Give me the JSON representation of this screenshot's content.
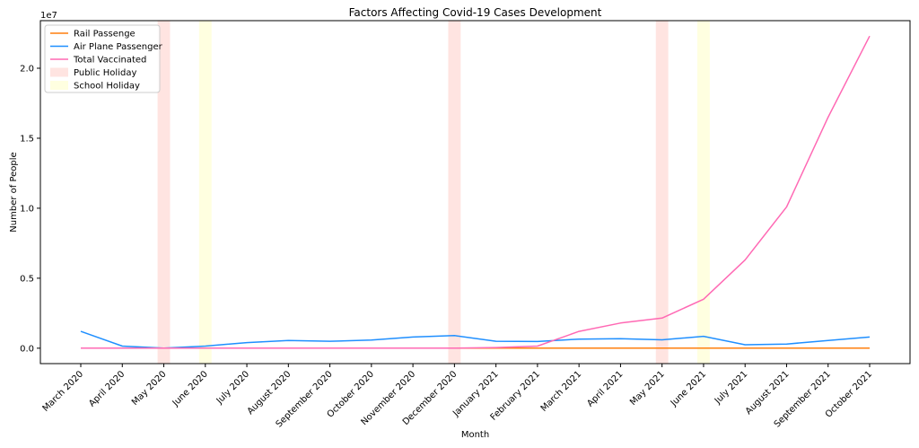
{
  "chart_data": {
    "type": "line",
    "title": "Factors Affecting Covid-19 Cases Development",
    "xlabel": "Month",
    "ylabel": "Number of People",
    "y_scale_label": "1e7",
    "ylim": [
      -1100000,
      23400000
    ],
    "yticks": [
      0,
      5000000,
      10000000,
      15000000,
      20000000
    ],
    "ytick_labels": [
      "0.0",
      "0.5",
      "1.0",
      "1.5",
      "2.0"
    ],
    "categories": [
      "March 2020",
      "April 2020",
      "May 2020",
      "June 2020",
      "July 2020",
      "August 2020",
      "September 2020",
      "October 2020",
      "November 2020",
      "December 2020",
      "January 2021",
      "February 2021",
      "March 2021",
      "April 2021",
      "May 2021",
      "June 2021",
      "July 2021",
      "August 2021",
      "September 2021",
      "October 2021"
    ],
    "series": [
      {
        "name": "Rail Passenge",
        "color": "#ff7f0e",
        "values": [
          0,
          0,
          0,
          0,
          0,
          0,
          0,
          0,
          0,
          0,
          0,
          0,
          0,
          0,
          0,
          0,
          0,
          0,
          0,
          0
        ]
      },
      {
        "name": "Air Plane Passenger",
        "color": "#1f8fff",
        "values": [
          1200000,
          150000,
          0,
          150000,
          400000,
          550000,
          500000,
          580000,
          800000,
          900000,
          500000,
          480000,
          650000,
          680000,
          600000,
          850000,
          250000,
          300000,
          550000,
          800000
        ]
      },
      {
        "name": "Total Vaccinated",
        "color": "#ff69b4",
        "values": [
          0,
          0,
          0,
          0,
          0,
          0,
          0,
          0,
          0,
          0,
          50000,
          150000,
          1200000,
          1800000,
          2150000,
          3500000,
          6300000,
          10100000,
          16500000,
          22300000
        ]
      }
    ],
    "spans": [
      {
        "name": "Public Holiday",
        "color": "#ffe4e1",
        "ranges": [
          [
            1.85,
            2.15
          ],
          [
            8.85,
            9.15
          ],
          [
            13.85,
            14.15
          ]
        ]
      },
      {
        "name": "School Holiday",
        "color": "#ffffe0",
        "ranges": [
          [
            2.85,
            3.15
          ],
          [
            14.85,
            15.15
          ]
        ]
      }
    ],
    "legend": {
      "position": "top-left",
      "entries": [
        {
          "label": "Rail Passenge",
          "kind": "line",
          "color": "#ff7f0e"
        },
        {
          "label": "Air Plane Passenger",
          "kind": "line",
          "color": "#1f8fff"
        },
        {
          "label": "Total Vaccinated",
          "kind": "line",
          "color": "#ff69b4"
        },
        {
          "label": "Public Holiday",
          "kind": "patch",
          "color": "#ffe4e1"
        },
        {
          "label": "School Holiday",
          "kind": "patch",
          "color": "#ffffe0"
        }
      ]
    }
  }
}
